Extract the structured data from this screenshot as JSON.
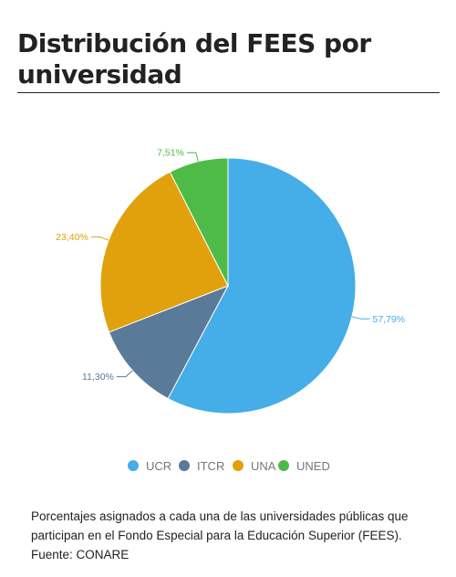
{
  "title": "Distribución del FEES por universidad",
  "caption": {
    "line1": "Porcentajes asignados a cada una de las universidades públicas que",
    "line2": "participan en el Fondo Especial para la Educación Superior (FEES).",
    "line3": "Fuente: CONARE"
  },
  "colors": {
    "UCR": "#45ade8",
    "ITCR": "#5a7a99",
    "UNA": "#e0a10c",
    "UNED": "#4ebb49"
  },
  "chart_data": {
    "type": "pie",
    "categories": [
      "UCR",
      "ITCR",
      "UNA",
      "UNED"
    ],
    "values": [
      57.79,
      11.3,
      23.4,
      7.51
    ],
    "data_labels": [
      "57,79%",
      "11,30%",
      "23,40%",
      "7,51%"
    ],
    "legend": "bottom",
    "start": "top, clockwise"
  }
}
